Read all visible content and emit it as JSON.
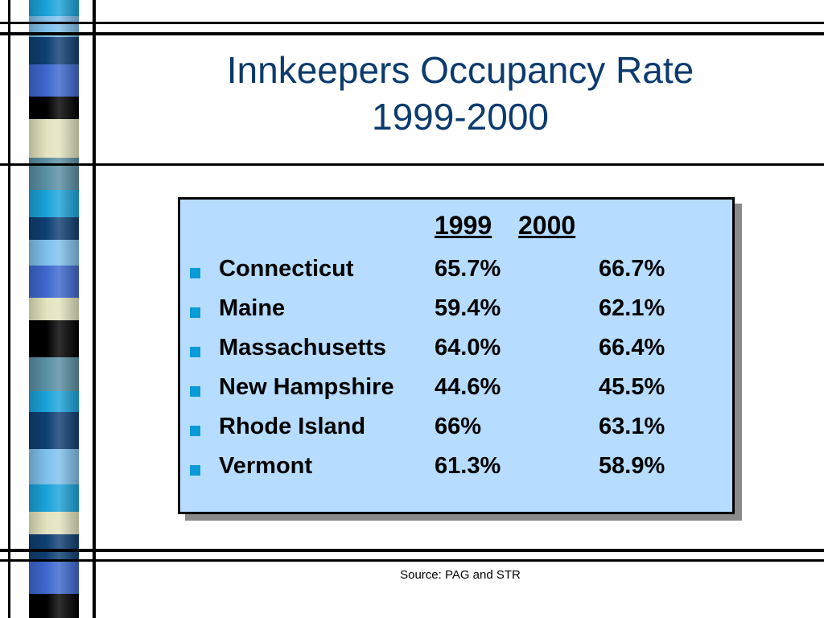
{
  "title": {
    "line1": "Innkeepers Occupancy Rate",
    "line2": "1999-2000"
  },
  "table": {
    "col_1999": "1999",
    "col_2000": "2000",
    "rows": [
      {
        "state": "Connecticut",
        "v1999": "65.7%",
        "v2000": "66.7%"
      },
      {
        "state": "Maine",
        "v1999": "59.4%",
        "v2000": "62.1%"
      },
      {
        "state": "Massachusetts",
        "v1999": "64.0%",
        "v2000": "66.4%"
      },
      {
        "state": "New Hampshire",
        "v1999": "44.6%",
        "v2000": "45.5%"
      },
      {
        "state": "Rhode Island",
        "v1999": "66%",
        "v2000": "63.1%"
      },
      {
        "state": "Vermont",
        "v1999": "61.3%",
        "v2000": "58.9%"
      }
    ]
  },
  "source": "Source: PAG and STR",
  "colors": {
    "title": "#0b3a6e",
    "panel_fill": "#b6dcff",
    "bullet": "#0a9ad8",
    "strip_palette": [
      "#1aa3d9",
      "#0f3f73",
      "#3e68cf",
      "#000000",
      "#e3e3bf",
      "#5a8fa3",
      "#7fc0ec"
    ]
  }
}
